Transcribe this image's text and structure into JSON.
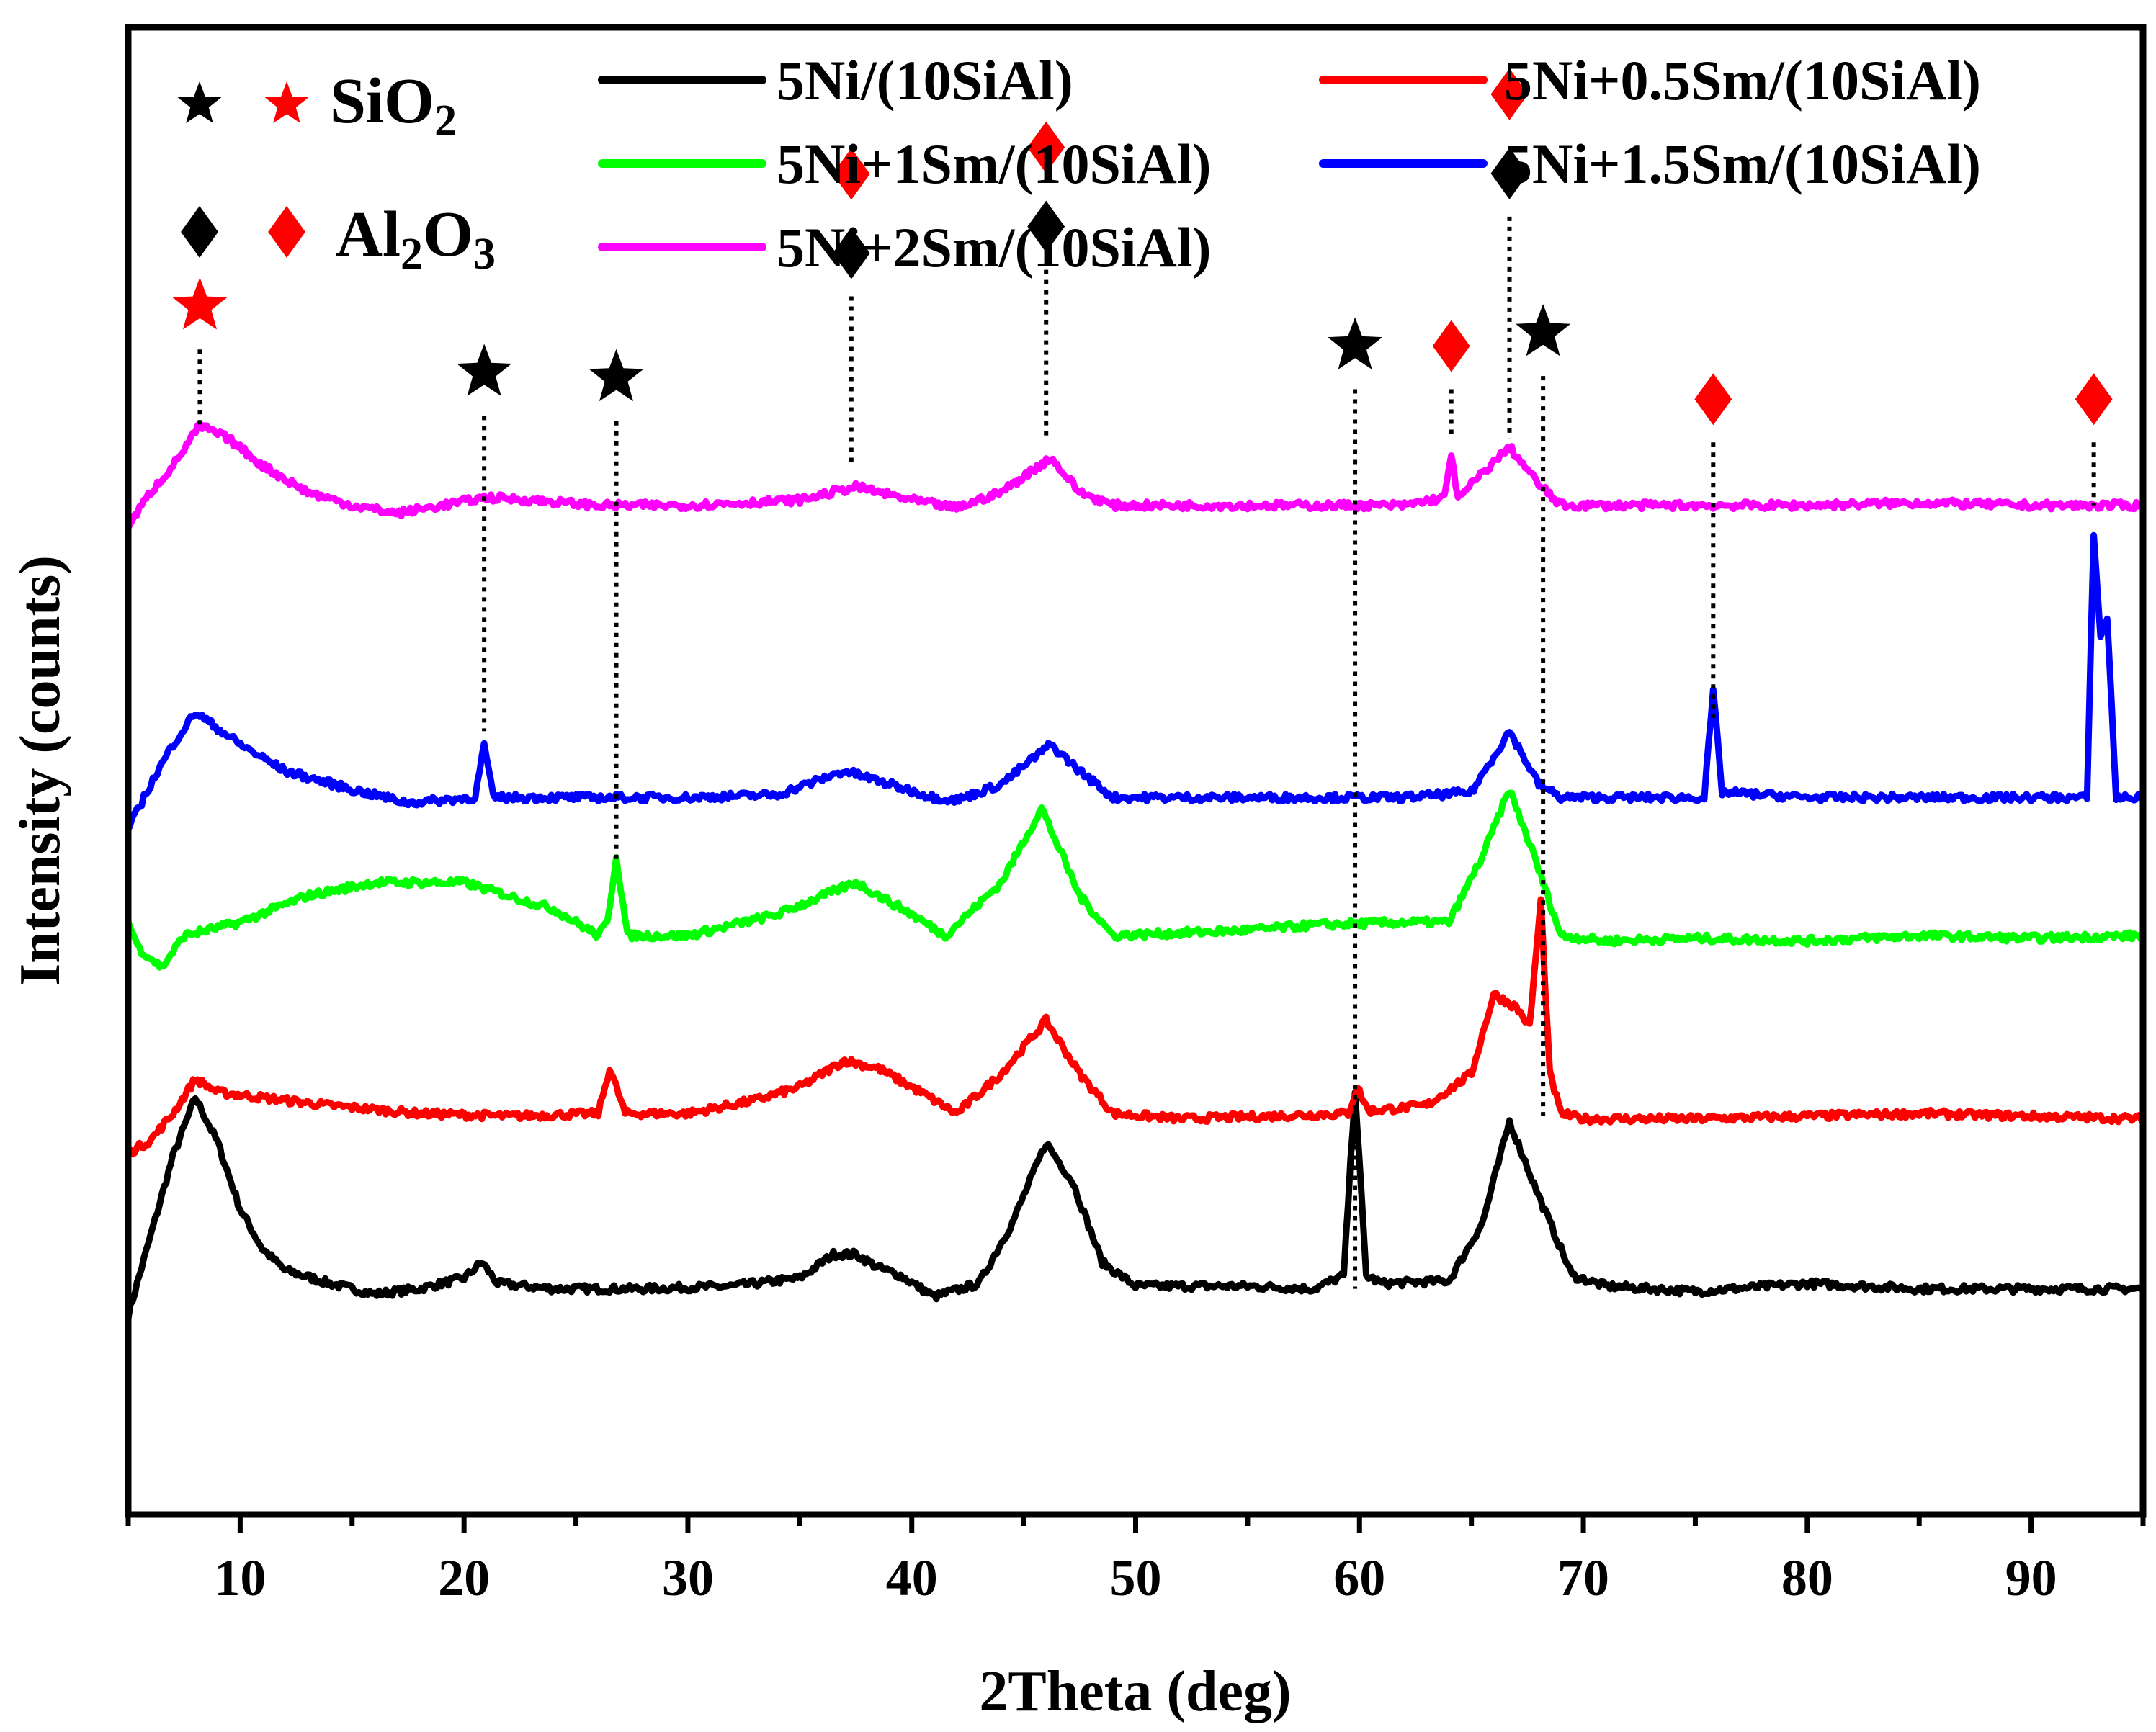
{
  "chart_data": {
    "type": "line",
    "title": "",
    "xlabel": "2Theta (deg)",
    "ylabel": "Intensity (counts)",
    "xlim": [
      5,
      95
    ],
    "ylim": [
      0,
      5.6
    ],
    "x_ticks": [
      10,
      20,
      30,
      40,
      50,
      60,
      70,
      80,
      90
    ],
    "y_ticks_shown": false,
    "grid": false,
    "legend_position": "top",
    "phase_legend": [
      {
        "symbol": "star",
        "colors": [
          "#000000",
          "#ff0000"
        ],
        "formula": "SiO",
        "sub": "2",
        "formula2": "",
        "sub2": ""
      },
      {
        "symbol": "diamond",
        "colors": [
          "#000000",
          "#ff0000"
        ],
        "formula": "Al",
        "sub": "2",
        "formula2": "O",
        "sub2": "3"
      }
    ],
    "series": [
      {
        "name": "5Ni/(10SiAl)",
        "color": "#000000",
        "offset": 0.75,
        "x": [
          5,
          6,
          7,
          8,
          9,
          10,
          11,
          12,
          14,
          16,
          18,
          20,
          20.8,
          21.5,
          24,
          28,
          32,
          35,
          36.5,
          37.5,
          38.5,
          39.5,
          41,
          43,
          44.5,
          46,
          47.2,
          48.5,
          50,
          55,
          58,
          59.3,
          59.8,
          60.3,
          61,
          64,
          65.5,
          66.7,
          68,
          69.5,
          71,
          75,
          80,
          85,
          90,
          95
        ],
        "y": [
          0,
          0.3,
          0.6,
          0.82,
          0.65,
          0.4,
          0.25,
          0.17,
          0.12,
          0.08,
          0.1,
          0.14,
          0.2,
          0.12,
          0.1,
          0.1,
          0.11,
          0.14,
          0.23,
          0.23,
          0.18,
          0.15,
          0.07,
          0.12,
          0.35,
          0.65,
          0.5,
          0.2,
          0.11,
          0.11,
          0.1,
          0.15,
          0.85,
          0.15,
          0.12,
          0.13,
          0.35,
          0.73,
          0.45,
          0.15,
          0.11,
          0.09,
          0.12,
          0.1,
          0.1,
          0.1
        ]
      },
      {
        "name": "5Ni+0.5Sm/(10SiAl)",
        "color": "#ff0000",
        "offset": 1.46,
        "x": [
          5,
          6,
          7,
          8,
          9,
          10,
          12,
          14,
          18,
          22,
          26,
          26.5,
          26.8,
          27.2,
          30,
          33,
          35,
          37,
          38.5,
          40,
          42,
          44,
          46,
          47.5,
          49,
          52,
          56,
          59.5,
          59.9,
          60.4,
          63,
          65,
          66,
          67,
          67.6,
          68.1,
          68.5,
          69,
          70,
          75,
          80,
          85,
          90,
          95
        ],
        "y": [
          -0.1,
          -0.05,
          0.05,
          0.18,
          0.13,
          0.12,
          0.1,
          0.08,
          0.05,
          0.04,
          0.05,
          0.22,
          0.15,
          0.05,
          0.05,
          0.1,
          0.15,
          0.25,
          0.22,
          0.15,
          0.05,
          0.2,
          0.4,
          0.2,
          0.05,
          0.03,
          0.04,
          0.05,
          0.15,
          0.06,
          0.08,
          0.2,
          0.5,
          0.45,
          0.38,
          0.85,
          0.2,
          0.05,
          0.03,
          0.03,
          0.04,
          0.05,
          0.04,
          0.03
        ]
      },
      {
        "name": "5Ni+1Sm/(10SiAl)",
        "color": "#00ff00",
        "offset": 2.18,
        "x": [
          5,
          5.5,
          6.5,
          7.5,
          8.5,
          10,
          13,
          16,
          20,
          24,
          26,
          26.4,
          26.8,
          27.3,
          30,
          34,
          37.5,
          40,
          41.5,
          44,
          45.8,
          47.5,
          49,
          55,
          58,
          62,
          64,
          65.5,
          66.7,
          67.8,
          69,
          71,
          75,
          80,
          85,
          90,
          95
        ],
        "y": [
          0.05,
          -0.05,
          -0.12,
          0.0,
          0.02,
          0.05,
          0.15,
          0.2,
          0.2,
          0.1,
          0.0,
          0.05,
          0.3,
          0.0,
          0.0,
          0.08,
          0.2,
          0.08,
          0.0,
          0.2,
          0.48,
          0.15,
          0.0,
          0.02,
          0.04,
          0.05,
          0.05,
          0.3,
          0.55,
          0.3,
          0.0,
          -0.02,
          -0.01,
          -0.02,
          0.0,
          -0.01,
          0.0
        ]
      },
      {
        "name": "5Ni+1.5Sm/(10SiAl)",
        "color": "#0000ff",
        "offset": 2.7,
        "x": [
          5,
          6,
          7,
          8,
          9,
          10,
          12,
          15,
          17.5,
          20.5,
          20.9,
          21.3,
          24,
          30,
          34,
          37,
          39,
          41,
          42,
          44,
          46.2,
          47.5,
          49,
          55,
          62,
          65,
          66.7,
          68,
          69,
          73,
          75.4,
          75.8,
          76.2,
          80,
          85,
          90,
          92.5,
          92.8,
          93.1,
          93.4,
          93.8,
          95
        ],
        "y": [
          -0.12,
          0.05,
          0.2,
          0.32,
          0.26,
          0.2,
          0.1,
          0.03,
          -0.02,
          0.0,
          0.2,
          0.0,
          0.0,
          0.0,
          0.01,
          0.1,
          0.05,
          0.0,
          -0.01,
          0.05,
          0.2,
          0.1,
          0.0,
          0.0,
          0.0,
          0.02,
          0.25,
          0.05,
          0.0,
          0.0,
          0.0,
          0.4,
          0.02,
          0.0,
          0.0,
          0.0,
          0.0,
          1.0,
          0.6,
          0.68,
          0.0,
          0.0
        ]
      },
      {
        "name": "5Ni+2Sm/(10SiAl)",
        "color": "#ff00ff",
        "offset": 3.8,
        "x": [
          5,
          6,
          7,
          8.2,
          9.5,
          11,
          13,
          15,
          17,
          19,
          21,
          23,
          26,
          30,
          35,
          37.5,
          40,
          42,
          44,
          46.2,
          47.5,
          49,
          53,
          58,
          62,
          63.8,
          64.1,
          64.4,
          65,
          66.7,
          68,
          69,
          71,
          75,
          80,
          85,
          90,
          95
        ],
        "y": [
          -0.08,
          0.05,
          0.15,
          0.3,
          0.25,
          0.15,
          0.05,
          0.0,
          -0.03,
          0.0,
          0.03,
          0.02,
          0.0,
          0.0,
          0.02,
          0.07,
          0.02,
          -0.01,
          0.05,
          0.18,
          0.05,
          0.0,
          0.0,
          0.0,
          0.0,
          0.03,
          0.2,
          0.02,
          0.08,
          0.22,
          0.08,
          0.0,
          0.0,
          0.0,
          0.0,
          0.01,
          0.0,
          0.0
        ]
      }
    ],
    "markers": [
      {
        "x": 8.2,
        "y_top": 4.55,
        "line_bottom": 4.1,
        "symbols": [
          {
            "shape": "star",
            "color": "#ff0000"
          }
        ]
      },
      {
        "x": 20.9,
        "y_top": 4.3,
        "line_bottom": 2.95,
        "symbols": [
          {
            "shape": "star",
            "color": "#000000"
          }
        ]
      },
      {
        "x": 26.8,
        "y_top": 4.28,
        "line_bottom": 2.45,
        "symbols": [
          {
            "shape": "star",
            "color": "#000000"
          }
        ]
      },
      {
        "x": 37.3,
        "y_top": 4.75,
        "line_bottom": 3.95,
        "symbols": [
          {
            "shape": "diamond",
            "color": "#000000"
          },
          {
            "shape": "diamond",
            "color": "#ff0000"
          }
        ]
      },
      {
        "x": 46.0,
        "y_top": 4.85,
        "line_bottom": 4.05,
        "symbols": [
          {
            "shape": "diamond",
            "color": "#000000"
          },
          {
            "shape": "diamond",
            "color": "#ff0000"
          }
        ]
      },
      {
        "x": 59.8,
        "y_top": 4.4,
        "line_bottom": 0.85,
        "symbols": [
          {
            "shape": "star",
            "color": "#000000"
          }
        ]
      },
      {
        "x": 64.1,
        "y_top": 4.4,
        "line_bottom": 4.05,
        "symbols": [
          {
            "shape": "diamond",
            "color": "#ff0000"
          }
        ]
      },
      {
        "x": 66.7,
        "y_top": 5.05,
        "line_bottom": 4.05,
        "symbols": [
          {
            "shape": "diamond",
            "color": "#000000"
          },
          {
            "shape": "diamond",
            "color": "#ff0000"
          }
        ]
      },
      {
        "x": 68.2,
        "y_top": 4.45,
        "line_bottom": 1.5,
        "symbols": [
          {
            "shape": "star",
            "color": "#000000"
          }
        ]
      },
      {
        "x": 75.8,
        "y_top": 4.2,
        "line_bottom": 3.0,
        "symbols": [
          {
            "shape": "diamond",
            "color": "#ff0000"
          }
        ]
      },
      {
        "x": 92.8,
        "y_top": 4.2,
        "line_bottom": 3.8,
        "symbols": [
          {
            "shape": "diamond",
            "color": "#ff0000"
          }
        ]
      }
    ]
  }
}
